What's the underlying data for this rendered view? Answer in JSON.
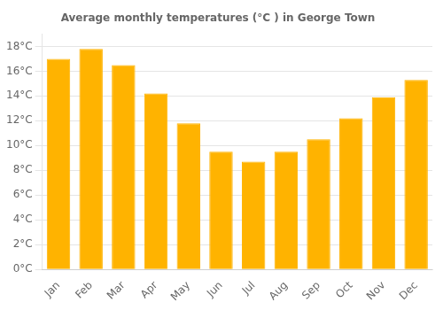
{
  "chart_data": {
    "type": "bar",
    "title": "Average monthly temperatures (°C ) in George Town",
    "categories": [
      "Jan",
      "Feb",
      "Mar",
      "Apr",
      "May",
      "Jun",
      "Jul",
      "Aug",
      "Sep",
      "Oct",
      "Nov",
      "Dec"
    ],
    "values": [
      17.0,
      17.8,
      16.5,
      14.2,
      11.8,
      9.5,
      8.7,
      9.5,
      10.5,
      12.2,
      13.9,
      15.3
    ],
    "color": "#FFB300",
    "ylim": [
      0,
      19
    ],
    "yticks": [
      {
        "value": 0,
        "label": "0°C"
      },
      {
        "value": 2,
        "label": "2°C"
      },
      {
        "value": 4,
        "label": "4°C"
      },
      {
        "value": 6,
        "label": "6°C"
      },
      {
        "value": 8,
        "label": "8°C"
      },
      {
        "value": 10,
        "label": "10°C"
      },
      {
        "value": 12,
        "label": "12°C"
      },
      {
        "value": 14,
        "label": "14°C"
      },
      {
        "value": 16,
        "label": "16°C"
      },
      {
        "value": 18,
        "label": "18°C"
      }
    ],
    "grid": true
  }
}
